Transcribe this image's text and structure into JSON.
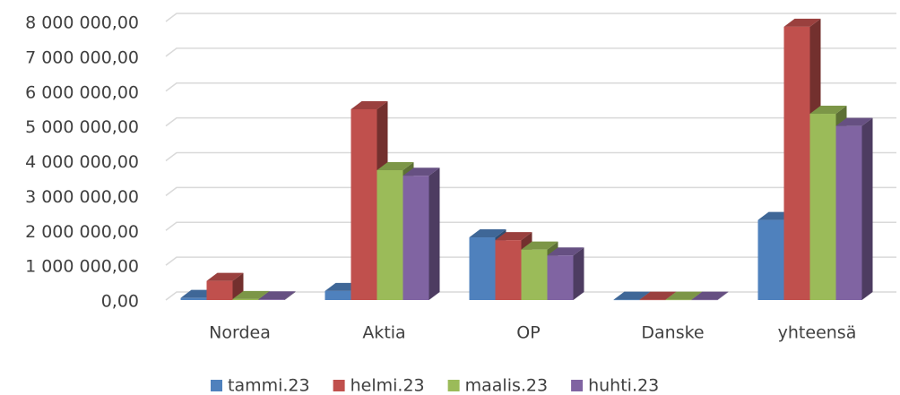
{
  "chart_data": {
    "type": "bar3d",
    "categories": [
      "Nordea",
      "Aktia",
      "OP",
      "Danske",
      "yhteensä"
    ],
    "series": [
      {
        "name": "tammi.23",
        "color": "#4f81bd",
        "values": [
          60000,
          260000,
          1800000,
          10000,
          2300000
        ]
      },
      {
        "name": "helmi.23",
        "color": "#c0504d",
        "values": [
          550000,
          5480000,
          1720000,
          10000,
          7850000
        ]
      },
      {
        "name": "maalis.23",
        "color": "#9bbb59",
        "values": [
          30000,
          3730000,
          1450000,
          10000,
          5350000
        ]
      },
      {
        "name": "huhti.23",
        "color": "#8064a2",
        "values": [
          20000,
          3570000,
          1280000,
          10000,
          5000000
        ]
      }
    ],
    "ylim": [
      0,
      8000000
    ],
    "yticks": [
      {
        "value": 0,
        "label": "0,00"
      },
      {
        "value": 1000000,
        "label": "1 000 000,00"
      },
      {
        "value": 2000000,
        "label": "2 000 000,00"
      },
      {
        "value": 3000000,
        "label": "3 000 000,00"
      },
      {
        "value": 4000000,
        "label": "4 000 000,00"
      },
      {
        "value": 5000000,
        "label": "5 000 000,00"
      },
      {
        "value": 6000000,
        "label": "6 000 000,00"
      },
      {
        "value": 7000000,
        "label": "7 000 000,00"
      },
      {
        "value": 8000000,
        "label": "8 000 000,00"
      }
    ],
    "grid": true,
    "legend": "bottom"
  }
}
